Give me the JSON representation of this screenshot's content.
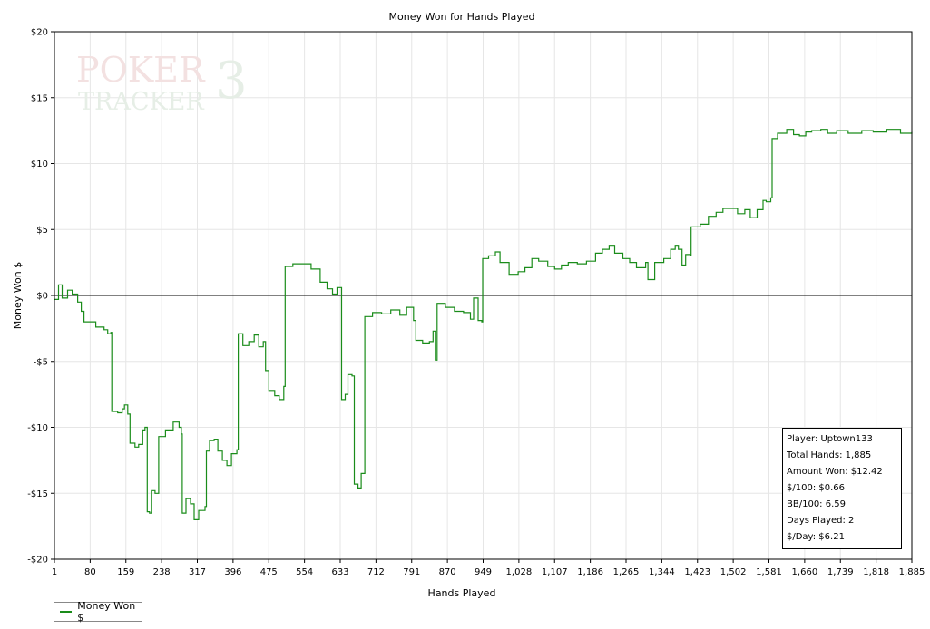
{
  "chart_data": {
    "type": "line",
    "title": "Money Won for Hands Played",
    "xlabel": "Hands Played",
    "ylabel": "Money Won $",
    "xlim": [
      1,
      1885
    ],
    "ylim": [
      -20,
      20
    ],
    "x_ticks": [
      "1",
      "80",
      "159",
      "238",
      "317",
      "396",
      "475",
      "554",
      "633",
      "712",
      "791",
      "870",
      "949",
      "1,028",
      "1,107",
      "1,186",
      "1,265",
      "1,344",
      "1,423",
      "1,502",
      "1,581",
      "1,660",
      "1,739",
      "1,818",
      "1,885"
    ],
    "y_ticks": [
      "$20",
      "$15",
      "$10",
      "$5",
      "$0",
      "-$5",
      "-$10",
      "-$15",
      "-$20"
    ],
    "grid": true,
    "legend_position": "bottom-left",
    "series": [
      {
        "name": "Money Won $",
        "color": "#1a8c1a",
        "points": [
          [
            1,
            -0.3
          ],
          [
            10,
            0.8
          ],
          [
            18,
            -0.2
          ],
          [
            30,
            0.4
          ],
          [
            40,
            0.1
          ],
          [
            52,
            -0.5
          ],
          [
            60,
            -1.2
          ],
          [
            66,
            -2.0
          ],
          [
            80,
            -2.0
          ],
          [
            92,
            -2.4
          ],
          [
            110,
            -2.6
          ],
          [
            118,
            -2.9
          ],
          [
            125,
            -2.8
          ],
          [
            127,
            -8.8
          ],
          [
            140,
            -8.9
          ],
          [
            150,
            -8.6
          ],
          [
            155,
            -8.3
          ],
          [
            162,
            -9.0
          ],
          [
            167,
            -11.2
          ],
          [
            178,
            -11.5
          ],
          [
            186,
            -11.3
          ],
          [
            195,
            -10.2
          ],
          [
            200,
            -10.0
          ],
          [
            205,
            -16.4
          ],
          [
            210,
            -16.5
          ],
          [
            214,
            -14.8
          ],
          [
            222,
            -15.0
          ],
          [
            230,
            -10.7
          ],
          [
            245,
            -10.2
          ],
          [
            262,
            -9.6
          ],
          [
            275,
            -10.0
          ],
          [
            280,
            -10.5
          ],
          [
            282,
            -16.5
          ],
          [
            290,
            -15.4
          ],
          [
            300,
            -15.8
          ],
          [
            308,
            -17.0
          ],
          [
            318,
            -16.3
          ],
          [
            332,
            -16.0
          ],
          [
            335,
            -11.8
          ],
          [
            342,
            -11.0
          ],
          [
            352,
            -10.9
          ],
          [
            360,
            -11.8
          ],
          [
            370,
            -12.5
          ],
          [
            380,
            -12.9
          ],
          [
            390,
            -12.0
          ],
          [
            402,
            -11.7
          ],
          [
            405,
            -2.9
          ],
          [
            415,
            -3.8
          ],
          [
            428,
            -3.5
          ],
          [
            440,
            -3.0
          ],
          [
            450,
            -3.9
          ],
          [
            460,
            -3.5
          ],
          [
            465,
            -5.7
          ],
          [
            472,
            -7.2
          ],
          [
            485,
            -7.6
          ],
          [
            495,
            -7.9
          ],
          [
            505,
            -6.9
          ],
          [
            508,
            2.2
          ],
          [
            525,
            2.4
          ],
          [
            545,
            2.4
          ],
          [
            565,
            2.0
          ],
          [
            585,
            1.0
          ],
          [
            600,
            0.5
          ],
          [
            612,
            0.1
          ],
          [
            622,
            0.6
          ],
          [
            630,
            0.6
          ],
          [
            632,
            -7.9
          ],
          [
            640,
            -7.5
          ],
          [
            646,
            -6.0
          ],
          [
            655,
            -6.1
          ],
          [
            660,
            -14.3
          ],
          [
            668,
            -14.6
          ],
          [
            675,
            -13.5
          ],
          [
            683,
            -1.6
          ],
          [
            700,
            -1.3
          ],
          [
            720,
            -1.4
          ],
          [
            740,
            -1.1
          ],
          [
            760,
            -1.5
          ],
          [
            775,
            -0.9
          ],
          [
            790,
            -1.9
          ],
          [
            795,
            -3.4
          ],
          [
            810,
            -3.6
          ],
          [
            825,
            -3.5
          ],
          [
            833,
            -2.7
          ],
          [
            838,
            -4.9
          ],
          [
            842,
            -0.6
          ],
          [
            860,
            -0.9
          ],
          [
            880,
            -1.2
          ],
          [
            900,
            -1.3
          ],
          [
            915,
            -1.8
          ],
          [
            922,
            -0.2
          ],
          [
            932,
            -1.9
          ],
          [
            940,
            -2.0
          ],
          [
            942,
            2.8
          ],
          [
            955,
            3.0
          ],
          [
            970,
            3.3
          ],
          [
            980,
            2.5
          ],
          [
            1000,
            1.6
          ],
          [
            1020,
            1.8
          ],
          [
            1035,
            2.1
          ],
          [
            1050,
            2.8
          ],
          [
            1065,
            2.6
          ],
          [
            1085,
            2.2
          ],
          [
            1100,
            2.0
          ],
          [
            1115,
            2.3
          ],
          [
            1130,
            2.5
          ],
          [
            1150,
            2.4
          ],
          [
            1170,
            2.6
          ],
          [
            1190,
            3.2
          ],
          [
            1205,
            3.5
          ],
          [
            1220,
            3.8
          ],
          [
            1232,
            3.2
          ],
          [
            1250,
            2.8
          ],
          [
            1265,
            2.5
          ],
          [
            1280,
            2.1
          ],
          [
            1300,
            2.5
          ],
          [
            1305,
            1.2
          ],
          [
            1320,
            2.5
          ],
          [
            1340,
            2.8
          ],
          [
            1355,
            3.5
          ],
          [
            1365,
            3.8
          ],
          [
            1372,
            3.5
          ],
          [
            1380,
            2.3
          ],
          [
            1388,
            3.1
          ],
          [
            1398,
            3.0
          ],
          [
            1400,
            5.2
          ],
          [
            1420,
            5.4
          ],
          [
            1438,
            6.0
          ],
          [
            1455,
            6.3
          ],
          [
            1470,
            6.6
          ],
          [
            1490,
            6.6
          ],
          [
            1502,
            6.2
          ],
          [
            1518,
            6.5
          ],
          [
            1530,
            5.9
          ],
          [
            1545,
            6.5
          ],
          [
            1558,
            7.2
          ],
          [
            1565,
            7.1
          ],
          [
            1575,
            7.4
          ],
          [
            1578,
            11.9
          ],
          [
            1590,
            12.3
          ],
          [
            1610,
            12.6
          ],
          [
            1625,
            12.2
          ],
          [
            1638,
            12.1
          ],
          [
            1652,
            12.4
          ],
          [
            1665,
            12.5
          ],
          [
            1685,
            12.6
          ],
          [
            1700,
            12.3
          ],
          [
            1720,
            12.5
          ],
          [
            1745,
            12.3
          ],
          [
            1775,
            12.5
          ],
          [
            1800,
            12.4
          ],
          [
            1830,
            12.6
          ],
          [
            1860,
            12.3
          ],
          [
            1885,
            12.4
          ]
        ]
      }
    ],
    "stats": [
      "Player: Uptown133",
      "Total Hands: 1,885",
      "Amount Won: $12.42",
      "$/100: $0.66",
      "BB/100: 6.59",
      "Days Played: 2",
      "$/Day: $6.21"
    ],
    "watermark": {
      "line1": "POKER",
      "line2": "TRACKER",
      "mark": "3"
    }
  }
}
